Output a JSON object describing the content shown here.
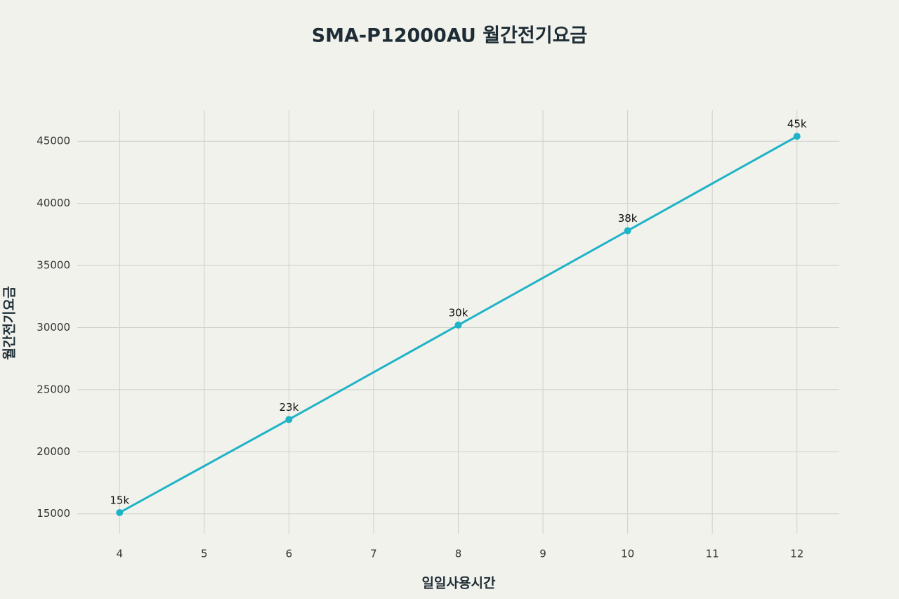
{
  "chart_data": {
    "type": "line",
    "title": "SMA-P12000AU 월간전기요금",
    "x_label": "일일사용시간",
    "y_label": "월간전기요금",
    "x": [
      4,
      6,
      8,
      10,
      12
    ],
    "series": [
      {
        "name": "월간전기요금",
        "color": "#1fb3c7",
        "values": [
          15100,
          22600,
          30200,
          37800,
          45400
        ],
        "value_labels": [
          "15k",
          "23k",
          "30k",
          "38k",
          "45k"
        ]
      }
    ],
    "xlim": [
      3.5,
      12.5
    ],
    "xticks": [
      4,
      5,
      6,
      7,
      8,
      9,
      10,
      11,
      12
    ],
    "ylim": [
      13400,
      47500
    ],
    "yticks": [
      15000,
      20000,
      25000,
      30000,
      35000,
      40000,
      45000
    ],
    "grid": true,
    "legend": false
  }
}
